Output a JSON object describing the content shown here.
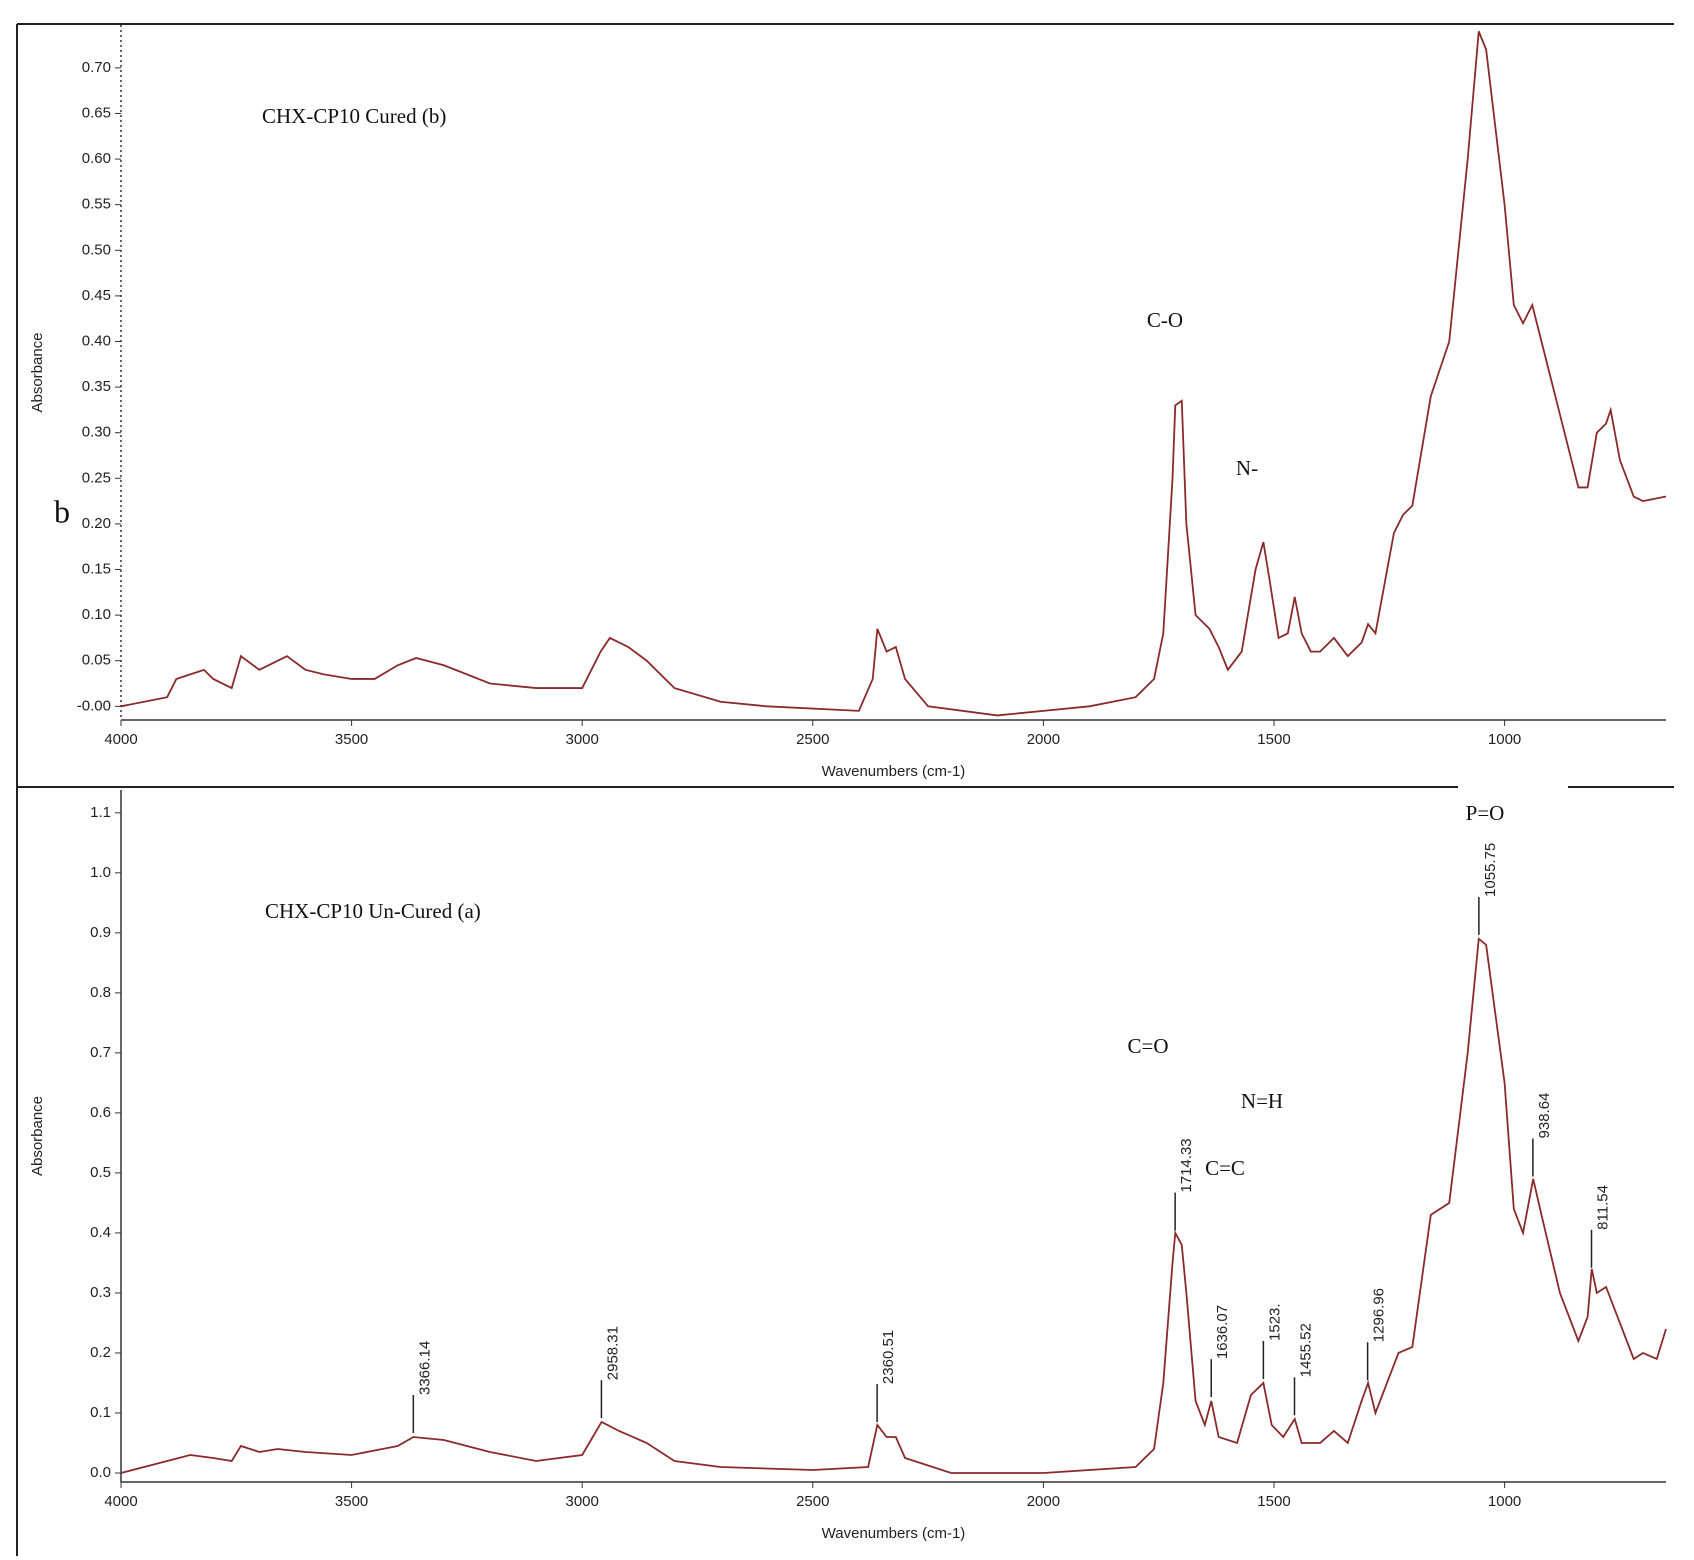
{
  "chart_data": [
    {
      "type": "line",
      "title": "CHX-CP10 Cured (b)",
      "x_label": "Wavenumbers (cm-1)",
      "y_label": "Absorbance",
      "annotations": [
        "C-O",
        "N-",
        "b"
      ],
      "xlim": [
        4000,
        650
      ],
      "xticks": [
        4000,
        3500,
        3000,
        2500,
        2000,
        1500,
        1000
      ],
      "ylim": [
        -0.015,
        0.747
      ],
      "yticks": [
        {
          "value": 0,
          "label": "-0.00"
        },
        0.05,
        {
          "value": 0.1,
          "label": "0.10"
        },
        0.15,
        {
          "value": 0.2,
          "label": "0.20"
        },
        0.25,
        {
          "value": 0.3,
          "label": "0.30"
        },
        0.35,
        {
          "value": 0.4,
          "label": "0.40"
        },
        0.45,
        {
          "value": 0.5,
          "label": "0.50"
        },
        0.55,
        {
          "value": 0.6,
          "label": "0.60"
        },
        0.65,
        {
          "value": 0.7,
          "label": "0.70"
        }
      ],
      "x": [
        4000,
        3900,
        3880,
        3850,
        3820,
        3800,
        3760,
        3740,
        3700,
        3660,
        3640,
        3600,
        3560,
        3500,
        3450,
        3400,
        3360,
        3300,
        3200,
        3100,
        3000,
        2960,
        2940,
        2900,
        2860,
        2800,
        2700,
        2600,
        2400,
        2370,
        2360,
        2340,
        2320,
        2300,
        2250,
        2100,
        2000,
        1900,
        1800,
        1760,
        1740,
        1720,
        1714,
        1700,
        1690,
        1670,
        1640,
        1620,
        1600,
        1570,
        1540,
        1523,
        1510,
        1490,
        1470,
        1455,
        1440,
        1420,
        1400,
        1370,
        1340,
        1310,
        1296,
        1280,
        1240,
        1220,
        1200,
        1160,
        1120,
        1080,
        1056,
        1040,
        1000,
        980,
        960,
        940,
        920,
        880,
        840,
        820,
        800,
        780,
        770,
        750,
        720,
        700,
        650
      ],
      "series": [
        {
          "color": "#8b2a2a",
          "values": [
            0,
            0.01,
            0.03,
            0.035,
            0.04,
            0.03,
            0.02,
            0.055,
            0.04,
            0.05,
            0.055,
            0.04,
            0.035,
            0.03,
            0.03,
            0.045,
            0.053,
            0.045,
            0.025,
            0.02,
            0.02,
            0.06,
            0.075,
            0.065,
            0.05,
            0.02,
            0.005,
            0,
            -0.005,
            0.03,
            0.085,
            0.06,
            0.065,
            0.03,
            0,
            -0.01,
            -0.005,
            0,
            0.01,
            0.03,
            0.08,
            0.25,
            0.33,
            0.335,
            0.2,
            0.1,
            0.085,
            0.065,
            0.04,
            0.06,
            0.15,
            0.18,
            0.14,
            0.075,
            0.08,
            0.12,
            0.08,
            0.06,
            0.06,
            0.075,
            0.055,
            0.07,
            0.09,
            0.08,
            0.19,
            0.21,
            0.22,
            0.34,
            0.4,
            0.6,
            0.74,
            0.72,
            0.55,
            0.44,
            0.42,
            0.44,
            0.4,
            0.32,
            0.24,
            0.24,
            0.3,
            0.31,
            0.325,
            0.27,
            0.23,
            0.225,
            0.23
          ]
        }
      ]
    },
    {
      "type": "line",
      "title": "CHX-CP10 Un-Cured (a)",
      "x_label": "Wavenumbers (cm-1)",
      "y_label": "Absorbance",
      "annotations": [
        "C=O",
        "N=H",
        "C=C",
        "P=O"
      ],
      "peaks": [
        3366.14,
        2958.31,
        2360.51,
        1714.33,
        1636.07,
        {
          "value": 1523,
          "label": "1523."
        },
        1455.52,
        1296.96,
        1055.75,
        938.64,
        811.54
      ],
      "xlim": [
        4000,
        650
      ],
      "xticks": [
        4000,
        3500,
        3000,
        2500,
        2000,
        1500,
        1000
      ],
      "ylim": [
        -0.015,
        1.138
      ],
      "yticks": [
        {
          "value": 0,
          "label": "0.0"
        },
        0.1,
        0.2,
        0.3,
        0.4,
        0.5,
        0.6,
        0.7,
        0.8,
        0.9,
        {
          "value": 1,
          "label": "1.0"
        },
        1.1
      ],
      "x": [
        4000,
        3900,
        3850,
        3800,
        3760,
        3740,
        3700,
        3660,
        3600,
        3500,
        3400,
        3366,
        3300,
        3200,
        3100,
        3000,
        2958,
        2920,
        2860,
        2800,
        2700,
        2500,
        2380,
        2360,
        2340,
        2320,
        2300,
        2200,
        2000,
        1800,
        1760,
        1740,
        1720,
        1714,
        1700,
        1690,
        1670,
        1650,
        1636,
        1620,
        1580,
        1550,
        1523,
        1505,
        1480,
        1455,
        1440,
        1400,
        1370,
        1340,
        1310,
        1296,
        1280,
        1250,
        1230,
        1200,
        1160,
        1120,
        1080,
        1056,
        1040,
        1000,
        980,
        960,
        938,
        920,
        880,
        840,
        820,
        811,
        800,
        780,
        760,
        720,
        700,
        670,
        650
      ],
      "series": [
        {
          "color": "#8b2a2a",
          "values": [
            0,
            0.02,
            0.03,
            0.025,
            0.02,
            0.045,
            0.035,
            0.04,
            0.035,
            0.03,
            0.045,
            0.06,
            0.055,
            0.035,
            0.02,
            0.03,
            0.085,
            0.07,
            0.05,
            0.02,
            0.01,
            0.005,
            0.01,
            0.08,
            0.06,
            0.06,
            0.025,
            0,
            0,
            0.01,
            0.04,
            0.15,
            0.35,
            0.4,
            0.38,
            0.3,
            0.12,
            0.08,
            0.12,
            0.06,
            0.05,
            0.13,
            0.15,
            0.08,
            0.06,
            0.09,
            0.05,
            0.05,
            0.07,
            0.05,
            0.12,
            0.15,
            0.1,
            0.16,
            0.2,
            0.21,
            0.43,
            0.45,
            0.7,
            0.89,
            0.88,
            0.65,
            0.44,
            0.4,
            0.49,
            0.43,
            0.3,
            0.22,
            0.26,
            0.34,
            0.3,
            0.31,
            0.27,
            0.19,
            0.2,
            0.19,
            0.24
          ]
        }
      ]
    }
  ]
}
